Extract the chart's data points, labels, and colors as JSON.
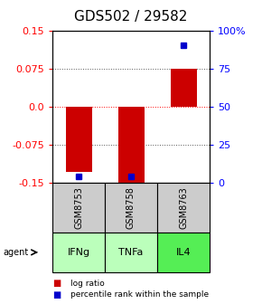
{
  "title": "GDS502 / 29582",
  "samples": [
    "GSM8753",
    "GSM8758",
    "GSM8763"
  ],
  "agents": [
    "IFNg",
    "TNFa",
    "IL4"
  ],
  "log_ratios": [
    -0.13,
    -0.155,
    0.075
  ],
  "percentile_ranks": [
    0.04,
    0.04,
    0.9
  ],
  "ylim": [
    -0.15,
    0.15
  ],
  "yticks_left": [
    -0.15,
    -0.075,
    0.0,
    0.075,
    0.15
  ],
  "yticks_right_labels": [
    "0",
    "25",
    "50",
    "75",
    "100%"
  ],
  "bar_color": "#cc0000",
  "dot_color": "#0000cc",
  "gray_bg": "#cccccc",
  "green_bg_light": "#bbffbb",
  "green_bg_dark": "#55ee55",
  "title_fontsize": 11,
  "tick_fontsize": 8,
  "label_fontsize": 8
}
